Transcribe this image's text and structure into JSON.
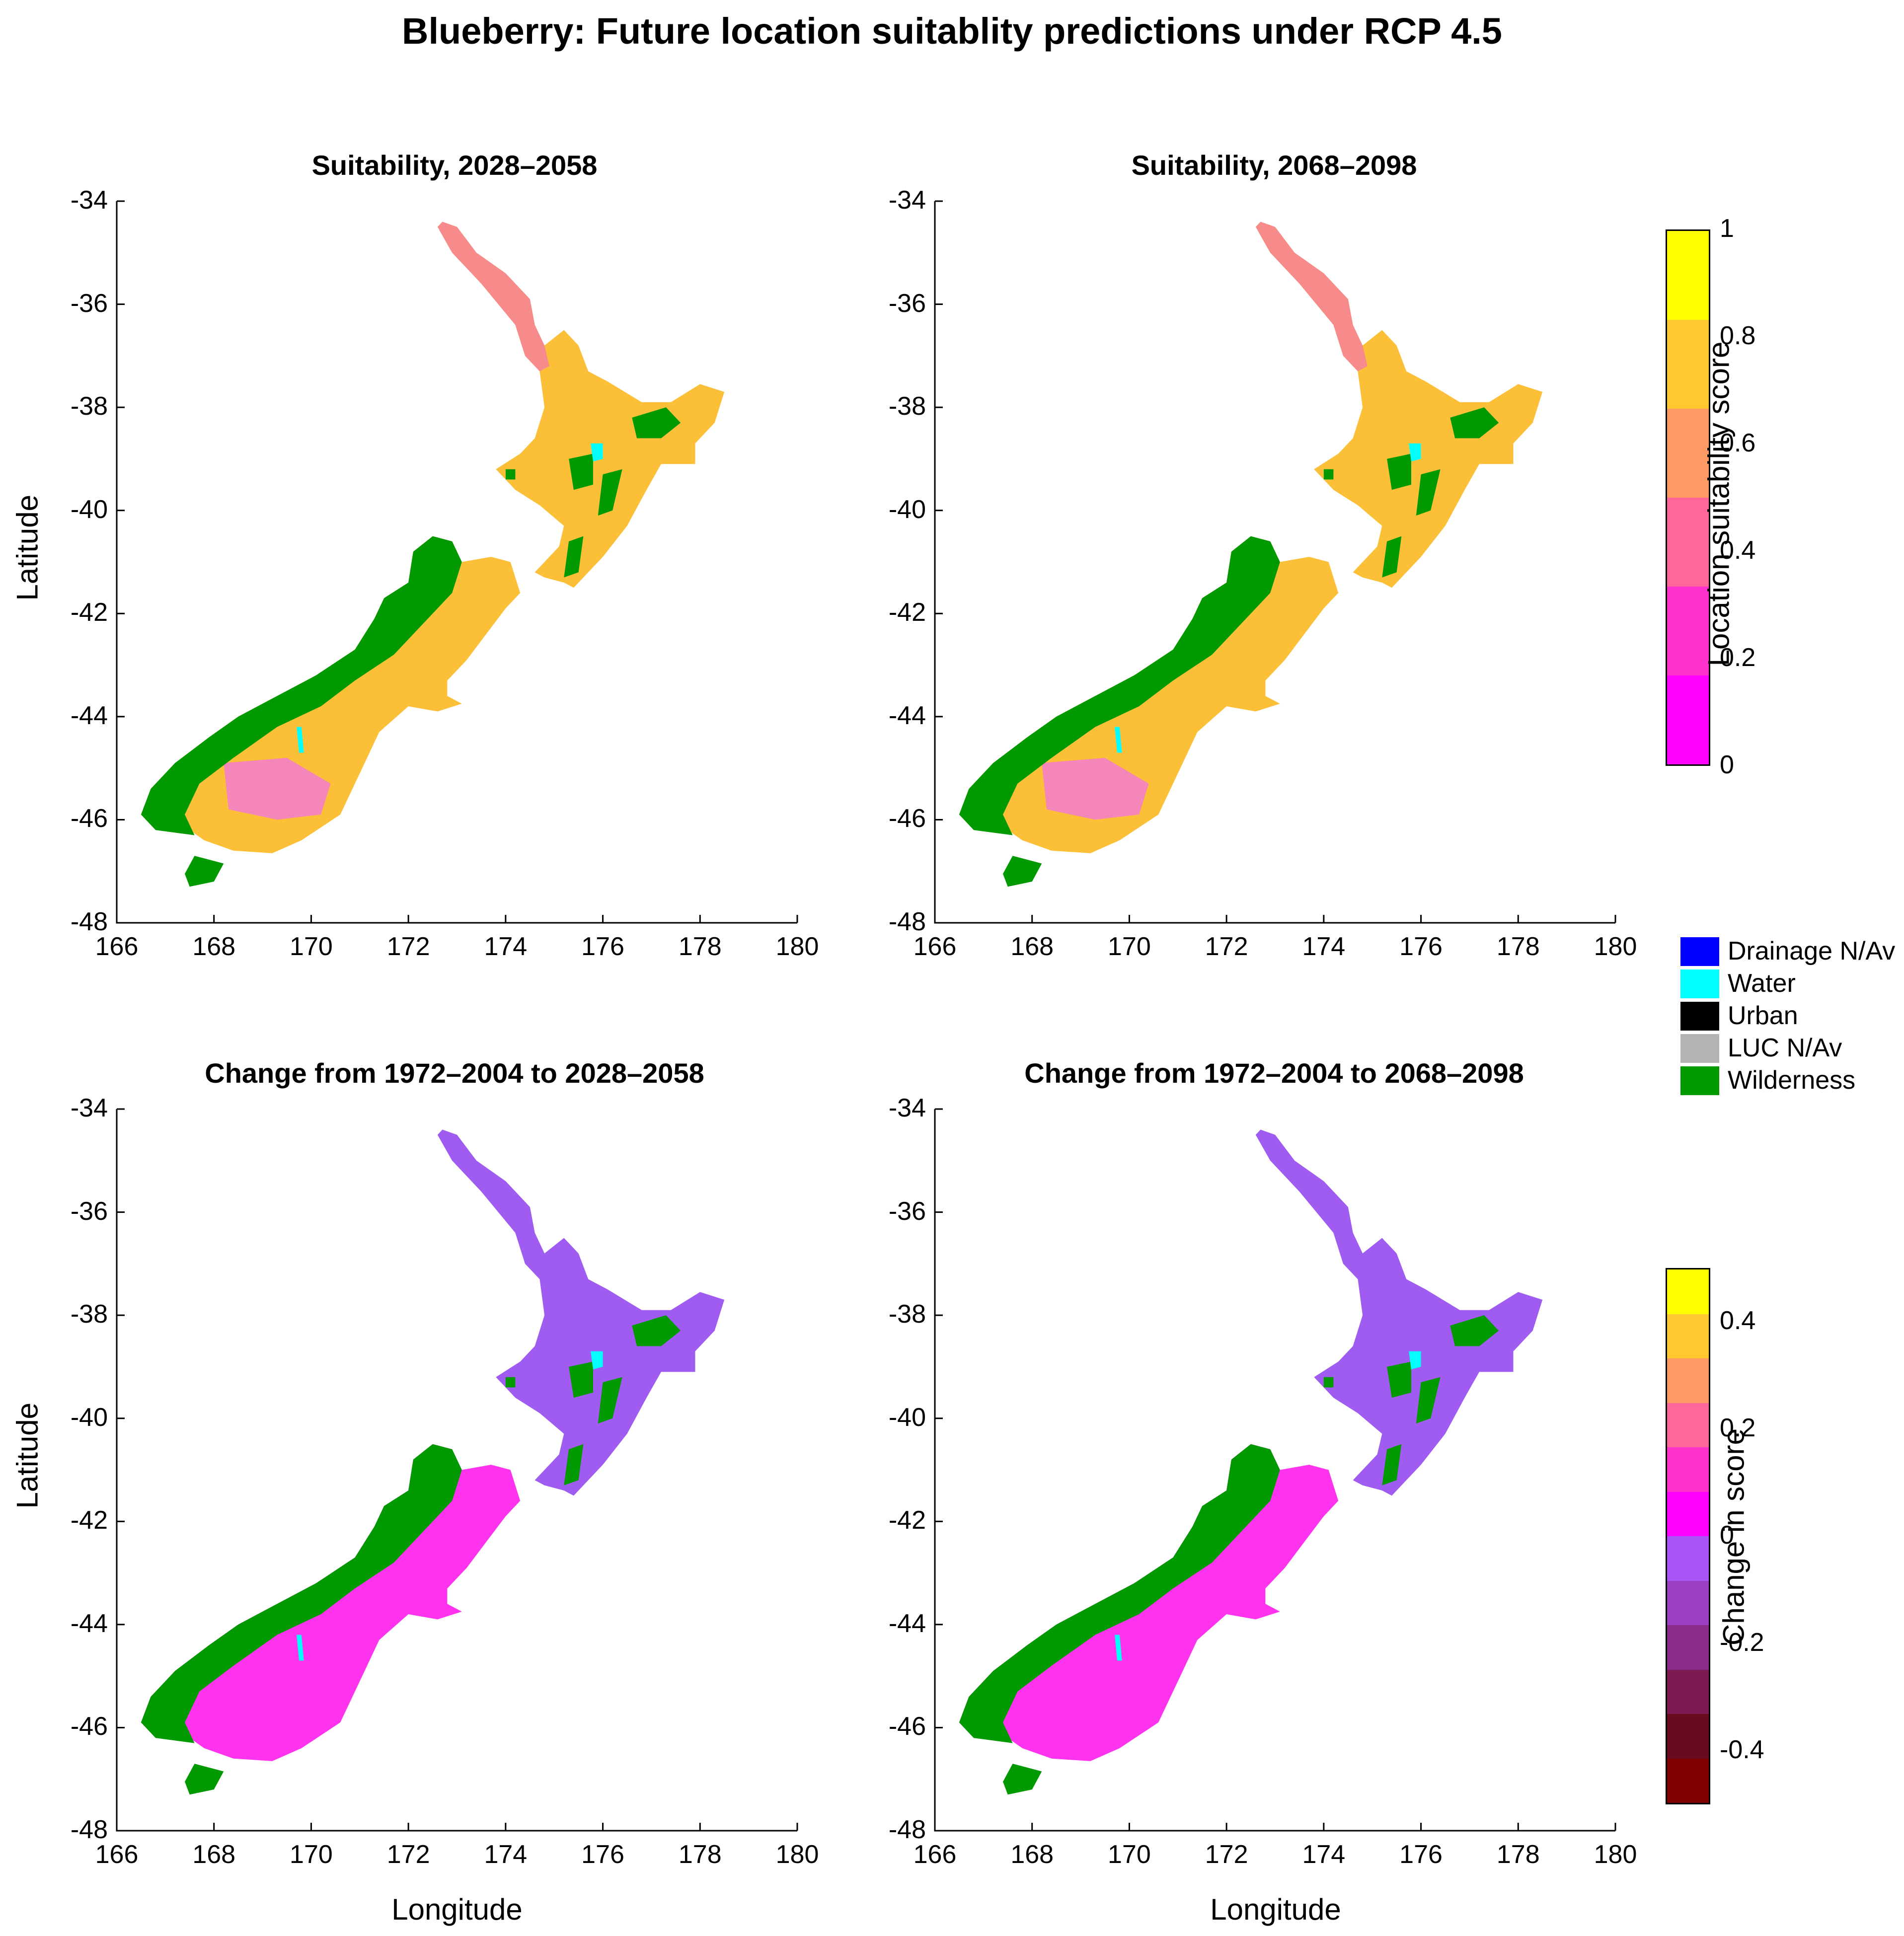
{
  "title": "Blueberry: Future location suitablity predictions under RCP 4.5",
  "panels": [
    {
      "title": "Suitability, 2028–2058",
      "kind": "suit"
    },
    {
      "title": "Suitability, 2068–2098",
      "kind": "suit"
    },
    {
      "title": "Change from 1972–2004 to 2028–2058",
      "kind": "change"
    },
    {
      "title": "Change from 1972–2004 to 2068–2098",
      "kind": "change"
    }
  ],
  "axes": {
    "xlabel": "Longitude",
    "ylabel": "Latitude",
    "xlim": [
      166,
      180
    ],
    "ylim": [
      -48,
      -34
    ],
    "xticks": [
      "166",
      "168",
      "170",
      "172",
      "174",
      "176",
      "178",
      "180"
    ],
    "yticks": [
      "-34",
      "-36",
      "-38",
      "-40",
      "-42",
      "-44",
      "-46",
      "-48"
    ]
  },
  "colorbar_suit": {
    "label": "Location suitability score",
    "range": [
      0,
      1
    ],
    "ticks": [
      "1",
      "0.8",
      "0.6",
      "0.4",
      "0.2",
      "0"
    ],
    "colors": [
      "#ffff00",
      "#ffc830",
      "#ff9966",
      "#ff6699",
      "#ff33cc",
      "#ff00ff"
    ]
  },
  "colorbar_change": {
    "label": "Change in score",
    "range": [
      -0.5,
      0.5
    ],
    "ticks": [
      "0.4",
      "0.2",
      "0",
      "-0.2",
      "-0.4"
    ],
    "colors_top": [
      "#ffff00",
      "#ffc830",
      "#ff9966",
      "#ff6699",
      "#ff33cc",
      "#ff00ff"
    ],
    "colors_bottom": [
      "#a855f7",
      "#9b3fc2",
      "#8a2b8a",
      "#7a1a50",
      "#6a0a20",
      "#7f0000"
    ]
  },
  "legend": [
    {
      "label": "Drainage N/Av",
      "color": "#0000ff"
    },
    {
      "label": "Water",
      "color": "#00ffff"
    },
    {
      "label": "Urban",
      "color": "#000000"
    },
    {
      "label": "LUC N/Av",
      "color": "#b3b3b3"
    },
    {
      "label": "Wilderness",
      "color": "#009900"
    }
  ],
  "map_colors": {
    "suit_land": "#fbbf38",
    "suit_north": "#f78a8a",
    "suit_south_low": "#f27bd0",
    "change_north": "#a05cf0",
    "change_south": "#ff33ee",
    "wilderness": "#009900",
    "water": "#00ffff"
  }
}
